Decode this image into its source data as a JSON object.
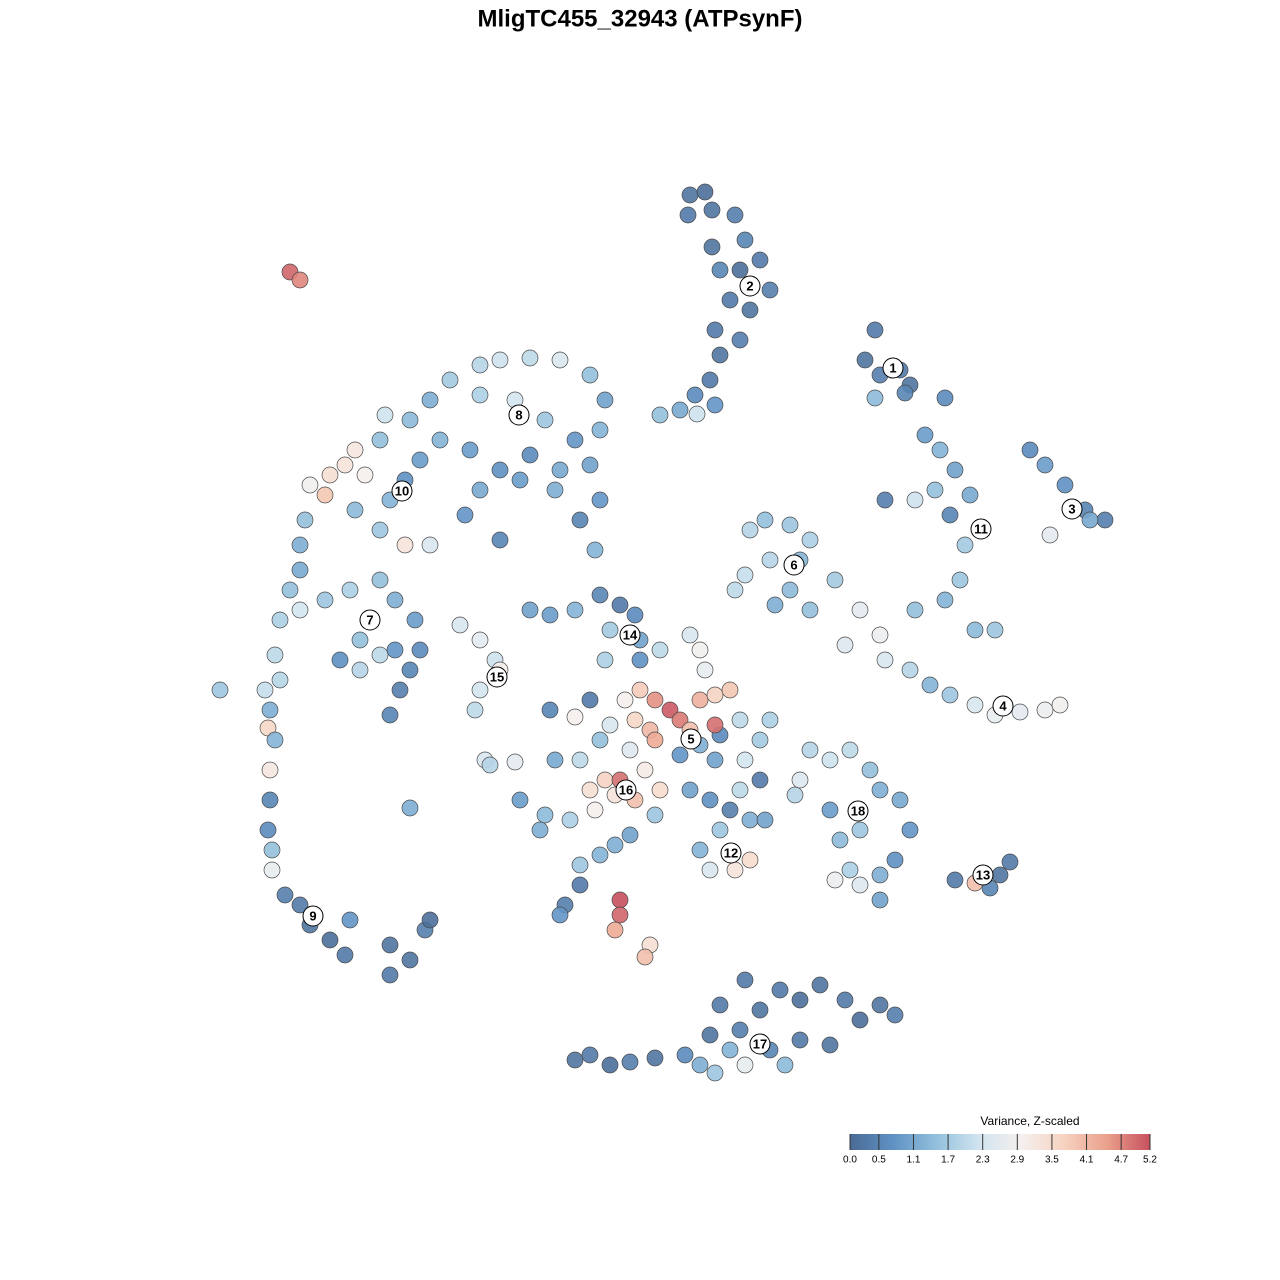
{
  "chart_data": {
    "type": "scatter",
    "title": "MligTC455_32943 (ATPsynF)",
    "xlim": [
      200,
      1120
    ],
    "ylim": [
      1100,
      180
    ],
    "colormap": [
      "#4a6a94",
      "#5f92c4",
      "#92bfdc",
      "#d0e4ef",
      "#f5f0ee",
      "#f6d2c0",
      "#eaa08b",
      "#c7505e"
    ],
    "colorbar": {
      "title": "Variance, Z-scaled",
      "ticks": [
        {
          "value": 0,
          "label": "0.0"
        },
        0.5,
        1.1,
        1.7,
        2.3,
        2.9,
        3.5,
        4.1,
        4.7,
        5.2
      ]
    },
    "x": [
      690,
      705,
      688,
      712,
      735,
      745,
      760,
      770,
      750,
      730,
      720,
      740,
      712,
      715,
      740,
      720,
      710,
      695,
      715,
      660,
      697,
      680,
      875,
      865,
      880,
      900,
      910,
      875,
      905,
      945,
      925,
      940,
      955,
      935,
      915,
      885,
      950,
      970,
      965,
      960,
      945,
      915,
      975,
      995,
      1030,
      1045,
      1065,
      1085,
      1105,
      1050,
      1090,
      750,
      765,
      790,
      810,
      770,
      745,
      735,
      790,
      810,
      835,
      775,
      800,
      860,
      880,
      885,
      910,
      930,
      950,
      975,
      995,
      1020,
      1045,
      1060,
      845,
      480,
      500,
      530,
      560,
      590,
      605,
      600,
      575,
      545,
      515,
      480,
      450,
      430,
      410,
      385,
      380,
      440,
      470,
      500,
      530,
      560,
      590,
      600,
      580,
      555,
      520,
      480,
      465,
      500,
      595,
      355,
      345,
      330,
      325,
      310,
      365,
      405,
      420,
      390,
      405,
      430,
      380,
      355,
      305,
      300,
      300,
      290,
      280,
      300,
      325,
      350,
      380,
      395,
      360,
      380,
      360,
      395,
      420,
      410,
      400,
      390,
      415,
      340,
      275,
      265,
      280,
      270,
      268,
      275,
      270,
      270,
      268,
      272,
      272,
      285,
      300,
      310,
      330,
      345,
      350,
      390,
      410,
      425,
      430,
      390,
      220,
      410,
      460,
      480,
      495,
      500,
      480,
      475,
      485,
      515,
      490,
      530,
      550,
      575,
      600,
      620,
      635,
      640,
      610,
      605,
      660,
      690,
      700,
      705,
      640,
      640,
      655,
      670,
      680,
      700,
      715,
      730,
      690,
      700,
      715,
      650,
      635,
      625,
      610,
      590,
      600,
      740,
      760,
      745,
      770,
      720,
      680,
      630,
      655,
      715,
      575,
      550,
      590,
      605,
      620,
      615,
      635,
      660,
      645,
      595,
      570,
      545,
      520,
      540,
      555,
      580,
      630,
      655,
      690,
      710,
      730,
      720,
      750,
      760,
      740,
      750,
      735,
      710,
      700,
      765,
      795,
      800,
      810,
      830,
      850,
      870,
      880,
      860,
      840,
      830,
      900,
      910,
      895,
      880,
      860,
      835,
      850,
      880,
      955,
      975,
      990,
      1000,
      1010,
      580,
      600,
      615,
      580,
      565,
      560,
      620,
      620,
      615,
      650,
      645,
      290,
      300,
      575,
      590,
      610,
      630,
      655,
      685,
      700,
      715,
      730,
      745,
      740,
      760,
      780,
      800,
      820,
      845,
      860,
      880,
      895,
      800,
      830,
      770,
      785,
      745,
      710,
      720
    ],
    "y": [
      195,
      192,
      215,
      210,
      215,
      240,
      260,
      290,
      310,
      300,
      270,
      270,
      247,
      330,
      340,
      355,
      380,
      395,
      405,
      415,
      414,
      410,
      330,
      360,
      375,
      370,
      385,
      398,
      393,
      398,
      435,
      450,
      470,
      490,
      500,
      500,
      515,
      495,
      545,
      580,
      600,
      610,
      630,
      630,
      450,
      465,
      485,
      510,
      520,
      535,
      520,
      530,
      520,
      525,
      540,
      560,
      575,
      590,
      590,
      610,
      580,
      605,
      560,
      610,
      635,
      660,
      670,
      685,
      695,
      705,
      715,
      712,
      710,
      705,
      645,
      365,
      360,
      358,
      360,
      375,
      400,
      430,
      440,
      420,
      400,
      395,
      380,
      400,
      420,
      415,
      440,
      440,
      450,
      470,
      455,
      470,
      465,
      500,
      520,
      490,
      480,
      490,
      515,
      540,
      550,
      450,
      465,
      475,
      495,
      485,
      475,
      480,
      460,
      500,
      545,
      545,
      530,
      510,
      520,
      545,
      570,
      590,
      620,
      610,
      600,
      590,
      580,
      600,
      640,
      655,
      670,
      650,
      650,
      670,
      690,
      715,
      620,
      660,
      655,
      690,
      680,
      710,
      728,
      740,
      770,
      800,
      830,
      850,
      870,
      895,
      905,
      925,
      940,
      955,
      920,
      975,
      960,
      930,
      920,
      945,
      690,
      808,
      625,
      640,
      660,
      670,
      690,
      710,
      760,
      762,
      765,
      610,
      615,
      610,
      595,
      605,
      615,
      640,
      630,
      660,
      650,
      635,
      650,
      670,
      660,
      690,
      700,
      710,
      720,
      700,
      695,
      690,
      730,
      745,
      760,
      730,
      720,
      700,
      725,
      700,
      740,
      720,
      740,
      760,
      720,
      735,
      755,
      750,
      740,
      725,
      717,
      710,
      790,
      780,
      780,
      795,
      800,
      790,
      770,
      810,
      820,
      815,
      800,
      830,
      760,
      760,
      835,
      815,
      790,
      800,
      810,
      830,
      820,
      780,
      790,
      860,
      870,
      870,
      850,
      820,
      795,
      780,
      750,
      760,
      750,
      770,
      790,
      830,
      840,
      810,
      800,
      830,
      860,
      875,
      885,
      880,
      870,
      900,
      880,
      883,
      888,
      875,
      862,
      865,
      855,
      845,
      885,
      905,
      915,
      900,
      915,
      930,
      945,
      957,
      272,
      280,
      1060,
      1055,
      1065,
      1062,
      1058,
      1055,
      1065,
      1073,
      1050,
      1065,
      1030,
      1010,
      990,
      1000,
      985,
      1000,
      1020,
      1005,
      1015,
      1040,
      1045,
      1050,
      1065,
      980,
      1035,
      1005
    ],
    "values": [
      0.2,
      0.1,
      0.3,
      0.2,
      0.4,
      0.5,
      0.3,
      0.4,
      0.2,
      0.3,
      0.5,
      0.1,
      0.2,
      0.3,
      0.4,
      0.2,
      0.3,
      0.6,
      0.8,
      1.5,
      2.2,
      1.1,
      0.3,
      0.2,
      0.4,
      0.3,
      0.2,
      1.4,
      0.5,
      0.6,
      0.9,
      1.3,
      1.0,
      1.5,
      2.2,
      0.4,
      0.5,
      1.1,
      1.7,
      1.6,
      1.3,
      1.5,
      1.4,
      1.6,
      0.6,
      0.9,
      0.7,
      0.5,
      0.4,
      2.6,
      1.1,
      1.9,
      1.5,
      1.6,
      1.8,
      1.9,
      2.1,
      2.0,
      1.4,
      1.5,
      1.7,
      1.2,
      1.3,
      2.6,
      2.8,
      2.4,
      1.9,
      1.3,
      1.6,
      2.4,
      2.7,
      2.6,
      2.8,
      2.9,
      2.5,
      1.9,
      2.2,
      2.0,
      2.4,
      1.5,
      1.0,
      1.3,
      0.8,
      1.6,
      2.3,
      1.8,
      1.7,
      1.2,
      1.4,
      2.2,
      1.5,
      1.3,
      0.9,
      0.7,
      0.6,
      1.1,
      1.0,
      0.8,
      0.5,
      1.2,
      0.9,
      1.1,
      0.8,
      0.5,
      1.3,
      3.2,
      3.3,
      3.4,
      3.9,
      2.9,
      3.0,
      0.7,
      0.9,
      1.3,
      3.3,
      2.4,
      1.6,
      1.4,
      1.5,
      1.2,
      1.1,
      1.5,
      1.8,
      2.3,
      1.6,
      1.8,
      1.5,
      1.2,
      1.5,
      2.0,
      1.9,
      0.8,
      0.6,
      0.5,
      0.4,
      0.5,
      0.9,
      0.7,
      2.0,
      2.1,
      1.9,
      1.2,
      3.6,
      1.3,
      3.2,
      0.5,
      0.6,
      1.5,
      2.7,
      0.4,
      0.3,
      0.2,
      0.1,
      0.3,
      0.8,
      0.3,
      0.2,
      0.4,
      0.1,
      0.2,
      1.6,
      1.2,
      2.4,
      2.6,
      2.2,
      3.0,
      2.3,
      2.0,
      2.4,
      2.6,
      1.9,
      1.0,
      0.9,
      1.3,
      0.5,
      0.3,
      0.6,
      1.0,
      1.7,
      1.8,
      2.0,
      2.4,
      2.9,
      2.7,
      0.7,
      3.8,
      4.6,
      5.1,
      4.8,
      4.2,
      3.7,
      3.9,
      4.0,
      1.2,
      1.0,
      4.1,
      3.6,
      3.0,
      2.4,
      0.3,
      1.5,
      2.0,
      1.7,
      2.3,
      1.8,
      0.6,
      0.8,
      2.5,
      4.3,
      4.9,
      3.0,
      0.5,
      3.4,
      3.7,
      4.9,
      3.3,
      4.0,
      3.5,
      3.1,
      3.0,
      1.8,
      1.4,
      0.9,
      1.2,
      1.1,
      2.0,
      1.0,
      1.6,
      1.0,
      0.7,
      0.4,
      1.6,
      1.2,
      0.3,
      2.0,
      3.5,
      3.3,
      2.4,
      1.3,
      1.0,
      1.9,
      2.5,
      1.9,
      2.2,
      2.0,
      1.5,
      1.2,
      1.6,
      1.4,
      0.9,
      1.1,
      0.8,
      0.7,
      1.2,
      2.5,
      2.8,
      1.8,
      1.0,
      0.3,
      4.0,
      0.5,
      0.2,
      0.3,
      1.6,
      1.3,
      1.2,
      0.3,
      0.4,
      0.8,
      5.2,
      5.0,
      4.3,
      3.4,
      4.0,
      5.0,
      4.7,
      0.2,
      0.3,
      0.1,
      0.4,
      0.2,
      0.6,
      1.2,
      1.6,
      1.3,
      2.7,
      0.4,
      0.2,
      0.3,
      0.1,
      0.2,
      0.3,
      0.1,
      0.2,
      0.4,
      0.3,
      0.2,
      0.5,
      1.4,
      0.3,
      0.2,
      0.3
    ],
    "clusters": [
      {
        "label": "1",
        "x": 893,
        "y": 368
      },
      {
        "label": "2",
        "x": 750,
        "y": 286
      },
      {
        "label": "3",
        "x": 1072,
        "y": 509
      },
      {
        "label": "4",
        "x": 1003,
        "y": 706
      },
      {
        "label": "5",
        "x": 691,
        "y": 739
      },
      {
        "label": "6",
        "x": 794,
        "y": 565
      },
      {
        "label": "7",
        "x": 370,
        "y": 620
      },
      {
        "label": "8",
        "x": 519,
        "y": 415
      },
      {
        "label": "9",
        "x": 313,
        "y": 916
      },
      {
        "label": "10",
        "x": 402,
        "y": 491
      },
      {
        "label": "11",
        "x": 981,
        "y": 529
      },
      {
        "label": "12",
        "x": 731,
        "y": 853
      },
      {
        "label": "13",
        "x": 983,
        "y": 875
      },
      {
        "label": "14",
        "x": 630,
        "y": 635
      },
      {
        "label": "15",
        "x": 497,
        "y": 677
      },
      {
        "label": "16",
        "x": 626,
        "y": 790
      },
      {
        "label": "17",
        "x": 760,
        "y": 1044
      },
      {
        "label": "18",
        "x": 858,
        "y": 811
      }
    ]
  }
}
